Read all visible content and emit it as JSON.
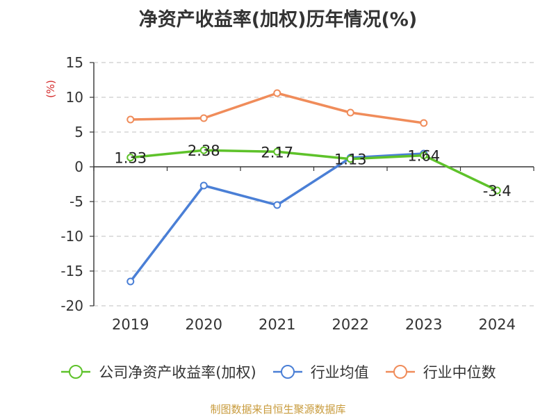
{
  "title": "净资产收益率(加权)历年情况(%)",
  "source": "制图数据来自恒生聚源数据库",
  "chart_data": {
    "type": "line",
    "unit_label": "(%)",
    "x": [
      "2019",
      "2020",
      "2021",
      "2022",
      "2023",
      "2024"
    ],
    "ylim": [
      -20,
      15
    ],
    "yticks": [
      -20,
      -15,
      -10,
      -5,
      0,
      5,
      10,
      15
    ],
    "grid": true,
    "legend_position": "bottom",
    "series": [
      {
        "name": "公司净资产收益率(加权)",
        "color": "#5ec22a",
        "values": [
          1.33,
          2.38,
          2.17,
          1.13,
          1.64,
          -3.4
        ],
        "labels": [
          "1.33",
          "2.38",
          "2.17",
          "1.13",
          "1.64",
          "-3.4"
        ]
      },
      {
        "name": "行业均值",
        "color": "#4a7fd6",
        "values": [
          -16.5,
          -2.7,
          -5.5,
          1.3,
          1.9,
          null
        ]
      },
      {
        "name": "行业中位数",
        "color": "#f08c5a",
        "values": [
          6.8,
          7.0,
          10.6,
          7.8,
          6.3,
          null
        ]
      }
    ]
  }
}
